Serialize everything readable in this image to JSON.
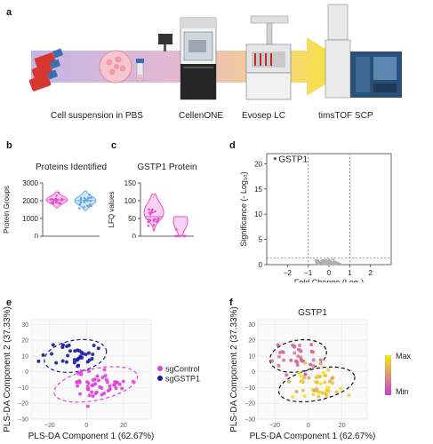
{
  "panel_labels": [
    "a",
    "b",
    "c",
    "d",
    "e",
    "f"
  ],
  "workflow": {
    "labels": [
      "Cell suspension in PBS",
      "CellenONE",
      "Evosep LC",
      "timsTOF SCP"
    ],
    "icons": [
      "cell-flasks-icon",
      "cell-dish-icon",
      "tube-icon",
      "cellenone-instrument-icon",
      "evosep-lc-icon",
      "timstof-instrument-icon"
    ]
  },
  "colors": {
    "sgControl": "#e040d8",
    "sgGSTP1": "#1a1aa0",
    "b_sgControl": "#e94fc9",
    "b_sgGSTP1": "#5da8e8",
    "arrow_start": "#b7a6e0",
    "arrow_end": "#f6e71a",
    "volcano_points": "#b0b0b0",
    "gradient_max": "#f5e91a",
    "gradient_min": "#c53cd3"
  },
  "chart_data": [
    {
      "id": "b",
      "type": "violin",
      "title": "Proteins Identified",
      "ylabel": "Protein Groups",
      "categories": [
        "sgControl",
        "sgGSTP1"
      ],
      "ylim": [
        0,
        3000
      ],
      "yticks": [
        0,
        1000,
        2000,
        3000
      ],
      "series": [
        {
          "name": "sgControl",
          "median": 2050,
          "min": 1600,
          "max": 2500
        },
        {
          "name": "sgGSTP1",
          "median": 2000,
          "min": 1450,
          "max": 2550
        }
      ]
    },
    {
      "id": "c",
      "type": "violin",
      "title": "GSTP1 Protein",
      "ylabel": "LFQ values",
      "categories": [
        "sgControl",
        "sgGSTP1"
      ],
      "ylim": [
        0,
        150
      ],
      "yticks": [
        0,
        50,
        100,
        150
      ],
      "series": [
        {
          "name": "sgControl",
          "median": 55,
          "min": 15,
          "max": 118
        },
        {
          "name": "sgGSTP1",
          "median": 2,
          "min": 0,
          "max": 55
        }
      ]
    },
    {
      "id": "d",
      "type": "scatter",
      "xlabel": "Fold Change (Log₂)",
      "ylabel": "Significance (- Log₁₀)",
      "xlim": [
        -3,
        3
      ],
      "ylim": [
        0,
        22
      ],
      "xticks": [
        -2,
        -1,
        0,
        1,
        2
      ],
      "yticks": [
        0,
        5,
        10,
        15,
        20
      ],
      "annotations": [
        {
          "label": "GSTP1",
          "x": -2.6,
          "y": 21
        }
      ]
    },
    {
      "id": "e",
      "type": "scatter",
      "xlabel": "PLS-DA Component 1 (62.67%)",
      "ylabel": "PLS-DA Component 2 (37.33%)",
      "xlim": [
        -30,
        35
      ],
      "ylim": [
        -30,
        33
      ],
      "xticks": [
        -20,
        0,
        20
      ],
      "yticks": [
        -30,
        -20,
        -10,
        0,
        10,
        20,
        30
      ],
      "legend": [
        "sgControl",
        "sgGSTP1"
      ]
    },
    {
      "id": "f",
      "type": "scatter",
      "title": "GSTP1",
      "xlabel": "PLS-DA Component 1 (62.67%)",
      "ylabel": "PLS-DA Component 2 (37.33%)",
      "xlim": [
        -30,
        35
      ],
      "ylim": [
        -30,
        33
      ],
      "xticks": [
        -20,
        0,
        20
      ],
      "yticks": [
        -30,
        -20,
        -10,
        0,
        10,
        20,
        30
      ],
      "colorbar_labels": [
        "Max",
        "Min"
      ]
    }
  ]
}
